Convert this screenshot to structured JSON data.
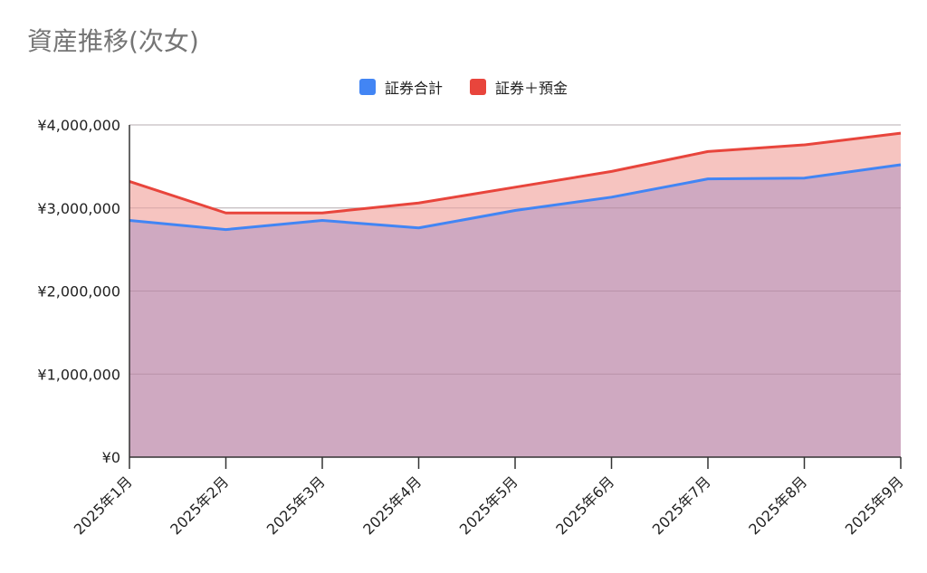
{
  "chart_data": {
    "type": "area",
    "title": "資産推移(次女)",
    "categories": [
      "2025年1月",
      "2025年2月",
      "2025年3月",
      "2025年4月",
      "2025年5月",
      "2025年6月",
      "2025年7月",
      "2025年8月",
      "2025年9月"
    ],
    "series": [
      {
        "name": "証券合計",
        "color": "#4285F4",
        "fill": "#cfa9c1",
        "values": [
          2850000,
          2740000,
          2850000,
          2760000,
          2970000,
          3130000,
          3350000,
          3360000,
          3520000
        ]
      },
      {
        "name": "証券＋預金",
        "color": "#E8453C",
        "fill": "#f6c4c0",
        "values": [
          3320000,
          2940000,
          2940000,
          3060000,
          3250000,
          3440000,
          3680000,
          3760000,
          3900000
        ]
      }
    ],
    "ylim": [
      0,
      4000000
    ],
    "yticks": [
      0,
      1000000,
      2000000,
      3000000,
      4000000
    ],
    "ytick_labels": [
      "¥0",
      "¥1,000,000",
      "¥2,000,000",
      "¥3,000,000",
      "¥4,000,000"
    ],
    "grid": true,
    "legend_position": "top-center",
    "xlabel": "",
    "ylabel": ""
  }
}
